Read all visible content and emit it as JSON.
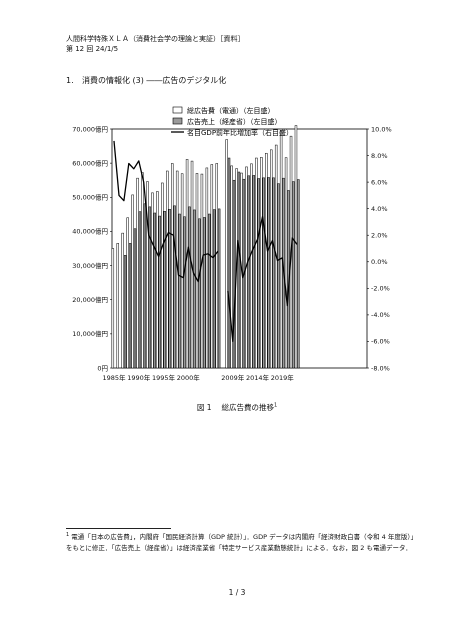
{
  "header": {
    "course": "人間科学特殊ＸＬＡ（消費社会学の理論と実証）［資料］",
    "session": "第 12 回 24/1/5"
  },
  "section": {
    "number": "1.",
    "title": "消費の情報化 (3) ――広告のデジタル化"
  },
  "figure": {
    "label": "図 1",
    "caption": "総広告費の推移",
    "footnote_mark": "1"
  },
  "footnote": {
    "mark": "1",
    "text": "電通「日本の広告費」，内閣府「国民経済計算（GDP 統計）」．GDP データは内閣府「経済財政白書（令和 4 年度版）」をもとに修正．「広告売上（経産省）」は経済産業省「特定サービス産業動態統計」による．なお，図 2 も電通データ．"
  },
  "page_number": "1 / 3",
  "chart_data": {
    "type": "bar",
    "legend_position": "top-center",
    "legend": [
      {
        "marker": "bar-open",
        "label": "総広告費（電通）（左目盛）"
      },
      {
        "marker": "bar-gray",
        "label": "広告売上（経産省）（左目盛）"
      },
      {
        "marker": "line",
        "label": "名目GDP前年比増加率（右目盛）"
      }
    ],
    "x_tick_labels": [
      "1985年",
      "1990年",
      "1995年",
      "2000年",
      "2009年",
      "2014年",
      "2019年"
    ],
    "y_left": {
      "min": 0,
      "max": 70000,
      "tick_labels": [
        "0円",
        "10,000億円",
        "20,000億円",
        "30,000億円",
        "40,000億円",
        "50,000億円",
        "60,000億円",
        "70,000億円"
      ]
    },
    "y_right": {
      "min": -8.0,
      "max": 10.0,
      "tick_labels": [
        "-8.0%",
        "-6.0%",
        "-4.0%",
        "-2.0%",
        "0.0%",
        "2.0%",
        "4.0%",
        "6.0%",
        "8.0%",
        "10.0%"
      ]
    },
    "groups": [
      {
        "start_year": 1985,
        "end_year": 2006,
        "dentsu": [
          35000,
          36500,
          39500,
          44000,
          50700,
          55600,
          57200,
          54600,
          51300,
          51700,
          54200,
          57700,
          59900,
          57700,
          56900,
          61100,
          60600,
          57000,
          56800,
          58600,
          59600,
          59900
        ],
        "meti": [
          null,
          null,
          33000,
          36500,
          40800,
          45800,
          48100,
          47200,
          45400,
          44500,
          45900,
          46500,
          47500,
          45100,
          44300,
          47200,
          46300,
          43700,
          44100,
          45100,
          46400,
          46600
        ],
        "gdp_growth": [
          9.1,
          5.0,
          4.6,
          7.4,
          7.0,
          7.6,
          6.0,
          2.0,
          1.2,
          0.4,
          1.4,
          2.2,
          2.0,
          -1.0,
          -1.2,
          1.1,
          -0.8,
          -1.5,
          0.5,
          0.6,
          0.3,
          0.8
        ]
      },
      {
        "start_year": 2008,
        "end_year": 2022,
        "dentsu": [
          66900,
          59200,
          58400,
          57100,
          58900,
          59800,
          61500,
          61700,
          62900,
          63900,
          65300,
          69400,
          61600,
          67900,
          71000
        ],
        "meti": [
          61500,
          55000,
          57400,
          55300,
          56300,
          56400,
          55500,
          55700,
          55800,
          55700,
          54000,
          55600,
          52000,
          54600,
          55200
        ],
        "gdp_growth": [
          -2.2,
          -6.0,
          1.6,
          -1.2,
          0.0,
          0.9,
          1.7,
          3.4,
          0.8,
          1.6,
          0.1,
          0.3,
          -3.3,
          1.8,
          1.3
        ]
      }
    ]
  }
}
